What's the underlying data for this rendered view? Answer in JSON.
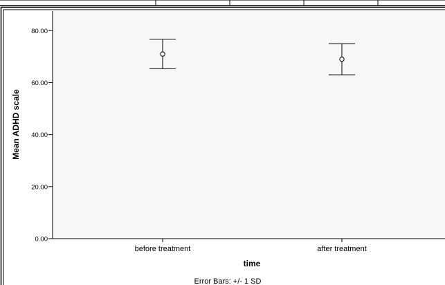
{
  "chart_data": {
    "type": "scatter",
    "categories": [
      "before treatment",
      "after treatment"
    ],
    "series": [
      {
        "values": [
          71.0,
          69.0
        ],
        "error_minus": [
          5.7,
          6.0
        ],
        "error_plus": [
          5.7,
          6.0
        ]
      }
    ],
    "xlabel": "time",
    "ylabel": "Mean ADHD scale",
    "ylim": [
      0,
      80
    ],
    "yticks": [
      "0.00",
      "20.00",
      "40.00",
      "60.00",
      "80.00"
    ],
    "grid": false,
    "footnote": "Error Bars: +/- 1 SD"
  },
  "colors": {
    "frame": "#000000",
    "plot_background": "#f7f7f7",
    "marker": "#000000"
  }
}
